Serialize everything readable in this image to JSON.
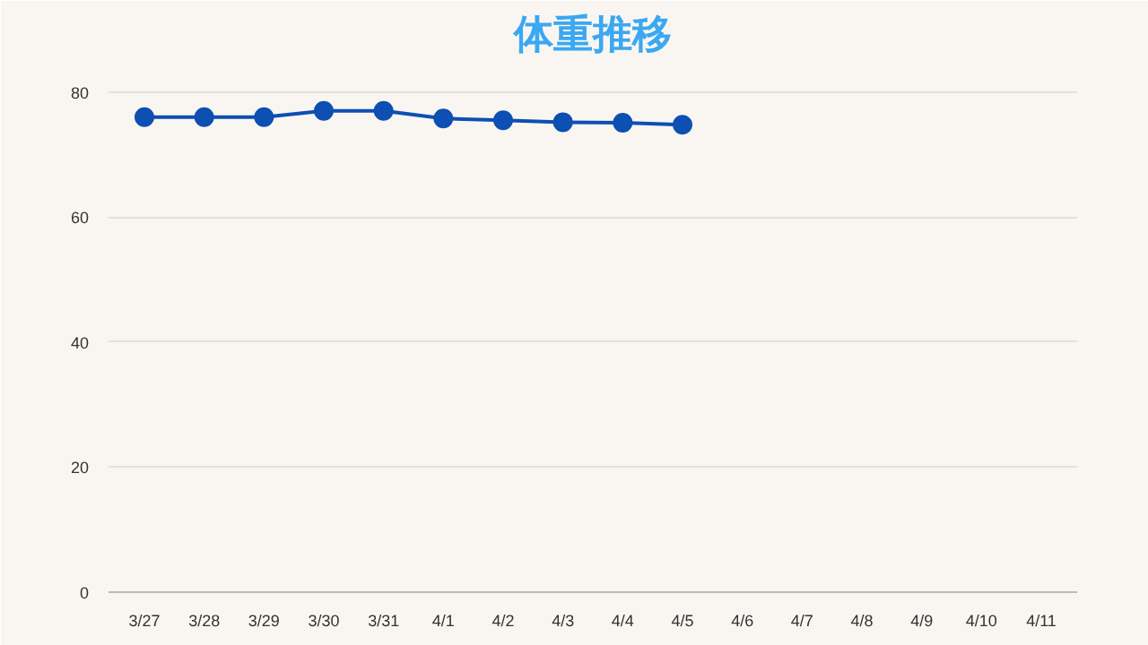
{
  "chart_data": {
    "type": "line",
    "title": "体重推移",
    "categories": [
      "3/27",
      "3/28",
      "3/29",
      "3/30",
      "3/31",
      "4/1",
      "4/2",
      "4/3",
      "4/4",
      "4/5",
      "4/6",
      "4/7",
      "4/8",
      "4/9",
      "4/10",
      "4/11"
    ],
    "series": [
      {
        "color": "#0d4fb3",
        "values": [
          76,
          76,
          76,
          77,
          77,
          75.8,
          75.5,
          75.2,
          75.1,
          74.8,
          null,
          null,
          null,
          null,
          null,
          null
        ]
      }
    ],
    "ylim": [
      0,
      84
    ],
    "yticks": [
      0,
      20,
      40,
      60,
      80
    ],
    "grid": "y",
    "marker": "circle"
  }
}
